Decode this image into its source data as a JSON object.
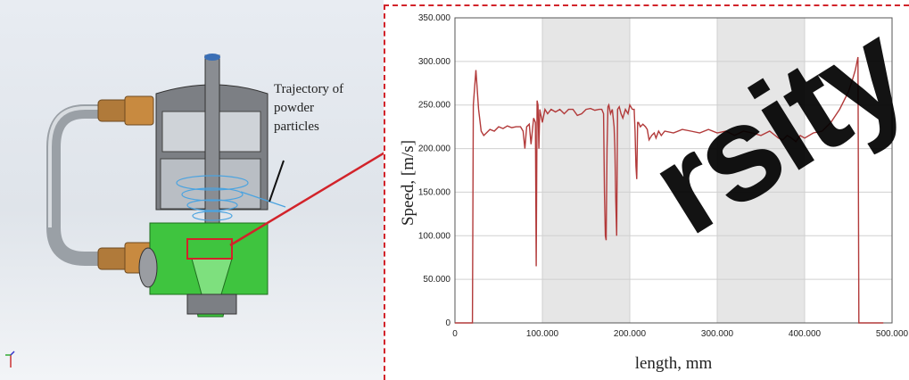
{
  "left_panel": {
    "label": "Trajectory  of\npowder\nparticles"
  },
  "colors": {
    "series": "#b23a3a",
    "highlight": "#d2232a",
    "band": "#e6e6e6"
  },
  "watermark": "rsity",
  "chart_data": {
    "type": "line",
    "xlabel": "length, mm",
    "ylabel": "Speed, [m/s]",
    "xlim": [
      0,
      500
    ],
    "ylim": [
      0,
      350
    ],
    "xticks": [
      "0",
      "100.000",
      "200.000",
      "300.000",
      "400.000",
      "500.000"
    ],
    "yticks": [
      "0",
      "50.000",
      "100.000",
      "150.000",
      "200.000",
      "250.000",
      "300.000",
      "350.000"
    ],
    "grid": true,
    "shaded_bands": [
      [
        100,
        200
      ],
      [
        300,
        400
      ]
    ],
    "series": [
      {
        "x": [
          0,
          20,
          21,
          24,
          27,
          30,
          33,
          36,
          40,
          45,
          50,
          55,
          60,
          65,
          70,
          75,
          78,
          80,
          82,
          85,
          87,
          90,
          92,
          93,
          94,
          95,
          96,
          97,
          98,
          100,
          103,
          106,
          110,
          115,
          120,
          125,
          130,
          135,
          140,
          145,
          150,
          155,
          160,
          165,
          168,
          170,
          171,
          172,
          173,
          174,
          175,
          176,
          178,
          180,
          182,
          183,
          184,
          185,
          186,
          188,
          190,
          192,
          195,
          198,
          200,
          203,
          205,
          206,
          207,
          208,
          209,
          210,
          212,
          215,
          218,
          220,
          222,
          225,
          228,
          230,
          233,
          236,
          240,
          250,
          260,
          270,
          280,
          290,
          300,
          310,
          320,
          330,
          340,
          350,
          360,
          370,
          375,
          380,
          385,
          390,
          395,
          400,
          410,
          420,
          430,
          440,
          450,
          455,
          458,
          460,
          461,
          462,
          463,
          480,
          490
        ],
        "y": [
          0,
          0,
          250,
          290,
          245,
          220,
          215,
          218,
          222,
          220,
          225,
          223,
          226,
          224,
          225,
          225,
          220,
          200,
          225,
          228,
          205,
          235,
          230,
          65,
          255,
          250,
          200,
          245,
          240,
          230,
          245,
          240,
          245,
          242,
          245,
          240,
          245,
          245,
          238,
          240,
          245,
          246,
          244,
          245,
          245,
          240,
          150,
          100,
          95,
          200,
          248,
          250,
          240,
          245,
          225,
          200,
          140,
          100,
          245,
          248,
          240,
          235,
          245,
          240,
          250,
          245,
          245,
          220,
          180,
          165,
          230,
          230,
          225,
          228,
          225,
          222,
          210,
          215,
          218,
          212,
          220,
          215,
          220,
          218,
          222,
          220,
          218,
          222,
          218,
          220,
          215,
          220,
          218,
          215,
          220,
          212,
          210,
          215,
          212,
          208,
          215,
          212,
          218,
          220,
          230,
          245,
          265,
          280,
          290,
          300,
          305,
          0,
          0,
          0,
          0
        ]
      }
    ]
  }
}
